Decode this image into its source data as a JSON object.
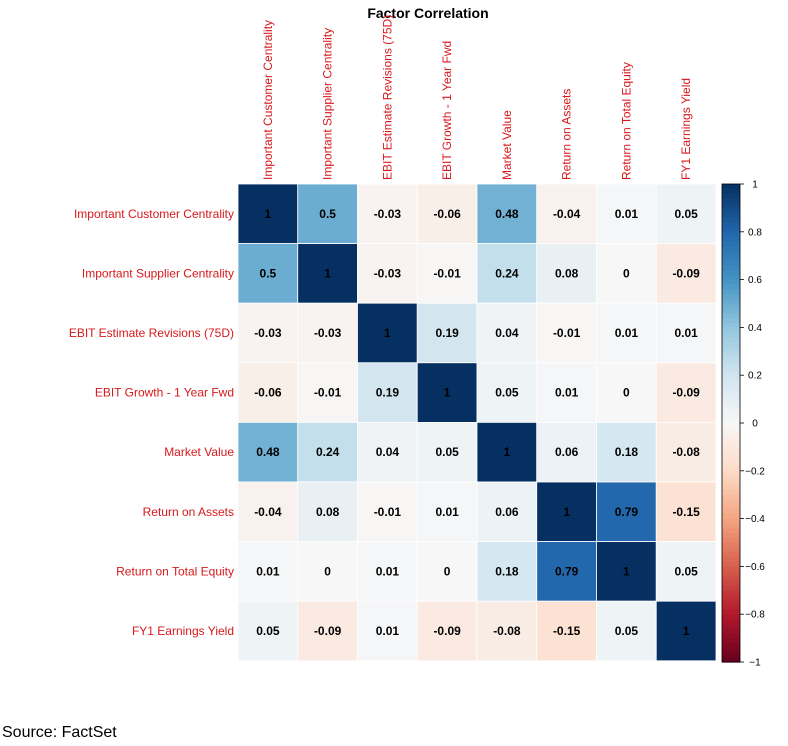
{
  "chart_data": {
    "type": "heatmap",
    "title": "Factor Correlation",
    "variables": [
      "Important Customer Centrality",
      "Important Supplier Centrality",
      "EBIT Estimate Revisions (75D)",
      "EBIT Growth - 1 Year Fwd",
      "Market Value",
      "Return on Assets",
      "Return on Total Equity",
      "FY1 Earnings Yield"
    ],
    "matrix": [
      [
        1,
        0.5,
        -0.03,
        -0.06,
        0.48,
        -0.04,
        0.01,
        0.05
      ],
      [
        0.5,
        1,
        -0.03,
        -0.01,
        0.24,
        0.08,
        0,
        -0.09
      ],
      [
        -0.03,
        -0.03,
        1,
        0.19,
        0.04,
        -0.01,
        0.01,
        0.01
      ],
      [
        -0.06,
        -0.01,
        0.19,
        1,
        0.05,
        0.01,
        0,
        -0.09
      ],
      [
        0.48,
        0.24,
        0.04,
        0.05,
        1,
        0.06,
        0.18,
        -0.08
      ],
      [
        -0.04,
        0.08,
        -0.01,
        0.01,
        0.06,
        1,
        0.79,
        -0.15
      ],
      [
        0.01,
        0,
        0.01,
        0,
        0.18,
        0.79,
        1,
        0.05
      ],
      [
        0.05,
        -0.09,
        0.01,
        -0.09,
        -0.08,
        -0.15,
        0.05,
        1
      ]
    ],
    "colorbar": {
      "range": [
        -1,
        1
      ],
      "ticks": [
        1,
        0.8,
        0.6,
        0.4,
        0.2,
        0,
        -0.2,
        -0.4,
        -0.6,
        -0.8,
        -1
      ],
      "tick_labels": [
        "1",
        "0.8",
        "0.6",
        "0.4",
        "0.2",
        "0",
        "−0.2",
        "−0.4",
        "−0.6",
        "−0.8",
        "−1"
      ]
    },
    "label_color": "#d7191c",
    "positive_color": "#053061",
    "negative_color": "#67001f"
  },
  "source": "Source: FactSet"
}
